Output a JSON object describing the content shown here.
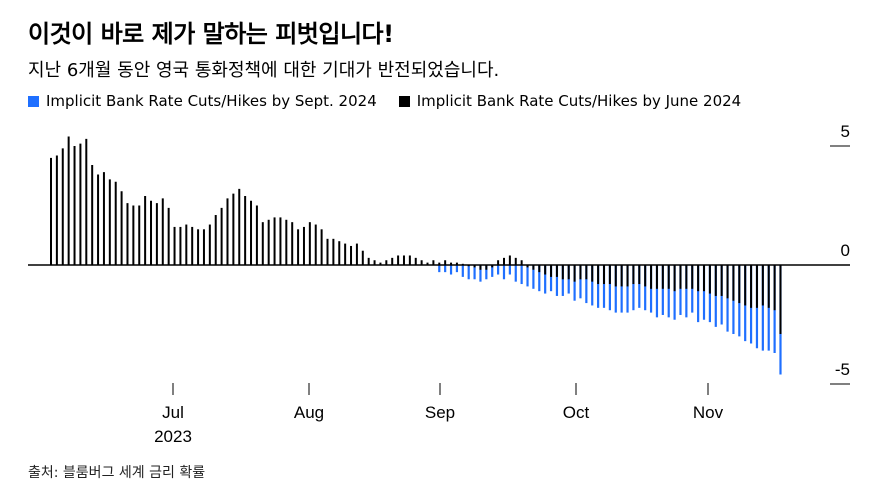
{
  "header": {
    "title": "이것이 바로 제가 말하는 피벗입니다!",
    "subtitle": "지난 6개월 동안 영국 통화정책에 대한 기대가 반전되었습니다."
  },
  "footer": {
    "source": "출처: 블룸버그 세계 금리 확률"
  },
  "colors": {
    "blue": "#1f6fff",
    "black": "#000000"
  },
  "chart_data": {
    "type": "bar",
    "title": "",
    "xlabel": "",
    "ylabel": "",
    "ylim": [
      -5,
      5
    ],
    "y_ticks": [
      "5",
      "0",
      "-5"
    ],
    "x_ticks": [
      {
        "label": "Jul",
        "sub": "2023",
        "date": "2023-07-01"
      },
      {
        "label": "Aug",
        "sub": "",
        "date": "2023-08-01"
      },
      {
        "label": "Sep",
        "sub": "",
        "date": "2023-09-01"
      },
      {
        "label": "Oct",
        "sub": "",
        "date": "2023-10-01"
      },
      {
        "label": "Nov",
        "sub": "",
        "date": "2023-11-01"
      }
    ],
    "legend": "top-left",
    "grid": false,
    "series": [
      {
        "name": "Implicit Bank Rate Cuts/Hikes by Sept. 2024",
        "color": "#1f6fff",
        "values": [
          0,
          0,
          0,
          0,
          0,
          0,
          0,
          0,
          0,
          0,
          0,
          0,
          0,
          0,
          0,
          0,
          0,
          0,
          0,
          0,
          0,
          0,
          0,
          0,
          0,
          0,
          0,
          0,
          0,
          0,
          0,
          0,
          0,
          0,
          0,
          0,
          0,
          0,
          0,
          0,
          0,
          0,
          0,
          0,
          0,
          0,
          0,
          0,
          0,
          0,
          0,
          0,
          0,
          0,
          0,
          0,
          0,
          0,
          0,
          0,
          0,
          0,
          0,
          0,
          0,
          0,
          -0.3,
          -0.3,
          -0.4,
          -0.3,
          -0.5,
          -0.6,
          -0.6,
          -0.7,
          -0.6,
          -0.5,
          -0.4,
          -0.6,
          -0.4,
          -0.7,
          -0.8,
          -0.9,
          -1.0,
          -1.1,
          -1.2,
          -1.1,
          -1.3,
          -1.3,
          -1.2,
          -1.5,
          -1.4,
          -1.6,
          -1.7,
          -1.8,
          -1.8,
          -1.9,
          -2.0,
          -2.0,
          -2.0,
          -1.9,
          -1.8,
          -1.9,
          -2.0,
          -2.2,
          -2.1,
          -2.2,
          -2.3,
          -2.1,
          -2.2,
          -2.0,
          -2.4,
          -2.3,
          -2.4,
          -2.6,
          -2.5,
          -2.8,
          -2.9,
          -3.0,
          -3.2,
          -3.3,
          -3.5,
          -3.6,
          -3.6,
          -3.7,
          -4.6
        ]
      },
      {
        "name": "Implicit Bank Rate Cuts/Hikes by June 2024",
        "color": "#000000",
        "values": [
          4.5,
          4.6,
          4.9,
          5.4,
          5.0,
          5.1,
          5.3,
          4.2,
          3.8,
          3.9,
          3.6,
          3.5,
          3.1,
          2.6,
          2.5,
          2.5,
          2.9,
          2.7,
          2.6,
          2.8,
          2.4,
          1.6,
          1.6,
          1.7,
          1.6,
          1.5,
          1.5,
          1.7,
          2.1,
          2.4,
          2.8,
          3.0,
          3.2,
          2.9,
          2.7,
          2.5,
          1.8,
          1.9,
          2.0,
          2.0,
          1.9,
          1.8,
          1.5,
          1.6,
          1.8,
          1.7,
          1.5,
          1.1,
          1.1,
          1.0,
          0.9,
          0.8,
          0.9,
          0.6,
          0.3,
          0.2,
          0.1,
          0.2,
          0.3,
          0.4,
          0.4,
          0.4,
          0.3,
          0.2,
          0.1,
          0.2,
          0.1,
          0.2,
          0.1,
          0.1,
          0.05,
          -0.05,
          -0.1,
          -0.2,
          -0.2,
          -0.1,
          0.2,
          0.3,
          0.4,
          0.3,
          0.2,
          -0.1,
          -0.2,
          -0.3,
          -0.4,
          -0.5,
          -0.5,
          -0.6,
          -0.6,
          -0.7,
          -0.6,
          -0.6,
          -0.7,
          -0.8,
          -0.8,
          -0.8,
          -0.9,
          -0.9,
          -0.9,
          -0.8,
          -0.8,
          -0.9,
          -1.0,
          -1.0,
          -1.0,
          -1.0,
          -1.1,
          -1.0,
          -1.0,
          -1.0,
          -1.1,
          -1.1,
          -1.2,
          -1.3,
          -1.3,
          -1.4,
          -1.5,
          -1.6,
          -1.7,
          -1.8,
          -1.8,
          -1.7,
          -1.8,
          -1.9,
          -2.9
        ]
      }
    ]
  }
}
